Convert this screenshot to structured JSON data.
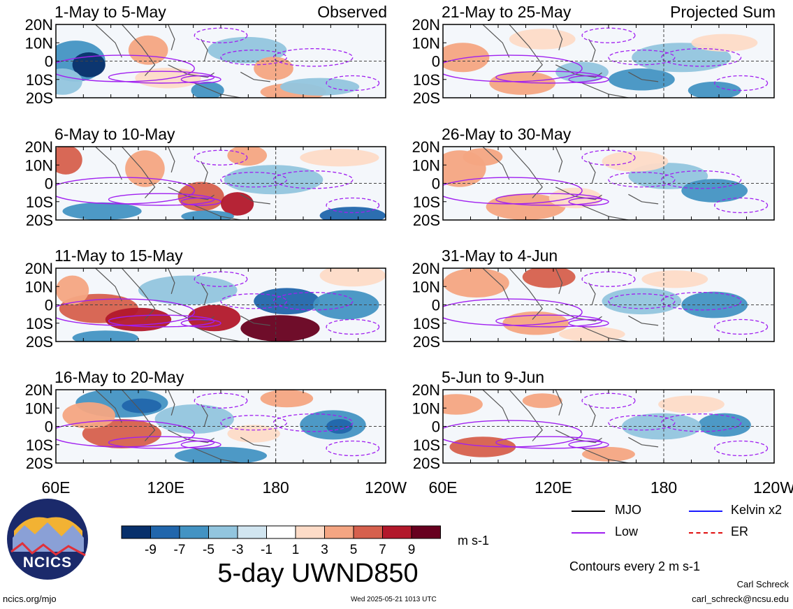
{
  "figure": {
    "title": "5-day UWND850",
    "units": "m s-1",
    "contour_note": "Contours every 2 m s-1",
    "author": "Carl Schreck",
    "email": "carl_schreck@ncsu.edu",
    "url": "ncics.org/mjo",
    "timestamp": "Wed 2025-05-21 1013 UTC",
    "logo_text": "NCICS"
  },
  "column_labels": {
    "observed": "Observed",
    "projected": "Projected Sum"
  },
  "legend": [
    {
      "label": "MJO",
      "color": "#000000",
      "style": "solid"
    },
    {
      "label": "Kelvin x2",
      "color": "#1a1aff",
      "style": "solid"
    },
    {
      "label": "Low",
      "color": "#a020f0",
      "style": "solid"
    },
    {
      "label": "ER",
      "color": "#e01010",
      "style": "dashed"
    }
  ],
  "colorbar": {
    "colors": [
      "#08306b",
      "#2166ac",
      "#4393c3",
      "#92c5de",
      "#d1e5f0",
      "#ffffff",
      "#fddbc7",
      "#f4a582",
      "#d6604d",
      "#b2182b",
      "#67001f"
    ],
    "tick_labels": [
      "-9",
      "-7",
      "-5",
      "-3",
      "-1",
      "1",
      "3",
      "5",
      "7",
      "9"
    ]
  },
  "chart_data": {
    "type": "heatmap",
    "variable": "850-hPa zonal wind (5-day mean)",
    "units": "m s-1",
    "xlim": [
      "60E",
      "120W"
    ],
    "ylim": [
      "20S",
      "20N"
    ],
    "x_ticks": [
      "60E",
      "120E",
      "180",
      "120W"
    ],
    "y_ticks": [
      "20N",
      "10N",
      "0",
      "10S",
      "20S"
    ],
    "levels": [
      -9,
      -7,
      -5,
      -3,
      -1,
      1,
      3,
      5,
      7,
      9
    ],
    "panels": [
      {
        "label": "1-May to 5-May",
        "group": "Observed"
      },
      {
        "label": "6-May to 10-May",
        "group": "Observed"
      },
      {
        "label": "11-May to 15-May",
        "group": "Observed"
      },
      {
        "label": "16-May to 20-May",
        "group": "Observed"
      },
      {
        "label": "21-May to 25-May",
        "group": "Projected Sum"
      },
      {
        "label": "26-May to 30-May",
        "group": "Projected Sum"
      },
      {
        "label": "31-May to 4-Jun",
        "group": "Projected Sum"
      },
      {
        "label": "5-Jun to 9-Jun",
        "group": "Projected Sum"
      }
    ]
  }
}
